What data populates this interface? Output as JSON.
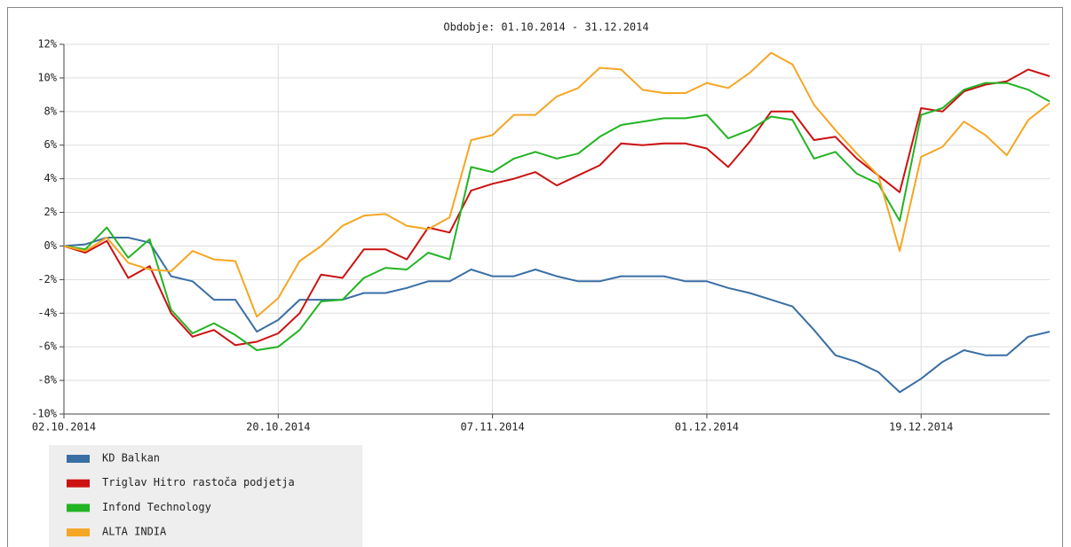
{
  "chart_data": {
    "type": "line",
    "title": "Obdobje: 01.10.2014 - 31.12.2014",
    "categories": [
      "02.10.2014",
      null,
      null,
      null,
      null,
      null,
      null,
      null,
      null,
      null,
      "20.10.2014",
      null,
      null,
      null,
      null,
      null,
      null,
      null,
      null,
      null,
      "07.11.2014",
      null,
      null,
      null,
      null,
      null,
      null,
      null,
      null,
      null,
      "01.12.2014",
      null,
      null,
      null,
      null,
      null,
      null,
      null,
      null,
      null,
      "19.12.2014",
      null,
      null,
      null,
      null,
      null,
      null
    ],
    "ylim": [
      -10,
      12
    ],
    "yticks": [
      {
        "value": -10,
        "label": "-10%"
      },
      {
        "value": -8,
        "label": "-8%"
      },
      {
        "value": -6,
        "label": "-6%"
      },
      {
        "value": -4,
        "label": "-4%"
      },
      {
        "value": -2,
        "label": "-2%"
      },
      {
        "value": 0,
        "label": "0%"
      },
      {
        "value": 2,
        "label": "2%"
      },
      {
        "value": 4,
        "label": "4%"
      },
      {
        "value": 6,
        "label": "6%"
      },
      {
        "value": 8,
        "label": "8%"
      },
      {
        "value": 10,
        "label": "10%"
      },
      {
        "value": 12,
        "label": "12%"
      }
    ],
    "grid": true,
    "legend": "bottom-left",
    "series": [
      {
        "name": "KD Balkan",
        "color": "#3a6ea5",
        "values": [
          0,
          0.1,
          0.5,
          0.5,
          0.2,
          -1.8,
          -2.1,
          -3.2,
          -3.2,
          -5.1,
          -4.4,
          -3.2,
          -3.2,
          -3.2,
          -2.8,
          -2.8,
          -2.5,
          -2.1,
          -2.1,
          -1.4,
          -1.8,
          -1.8,
          -1.4,
          -1.8,
          -2.1,
          -2.1,
          -1.8,
          -1.8,
          -1.8,
          -2.1,
          -2.1,
          -2.5,
          -2.8,
          -3.2,
          -3.6,
          -5.0,
          -6.5,
          -6.9,
          -7.5,
          -8.7,
          -7.9,
          -6.9,
          -6.2,
          -6.5,
          -6.5,
          -5.4,
          -5.1
        ]
      },
      {
        "name": "Triglav Hitro rastoča podjetja",
        "color": "#cc1111",
        "values": [
          0,
          -0.4,
          0.3,
          -1.9,
          -1.2,
          -4.0,
          -5.4,
          -5.0,
          -5.9,
          -5.7,
          -5.2,
          -4.0,
          -1.7,
          -1.9,
          -0.2,
          -0.2,
          -0.8,
          1.1,
          0.8,
          3.3,
          3.7,
          4.0,
          4.4,
          3.6,
          4.2,
          4.8,
          6.1,
          6.0,
          6.1,
          6.1,
          5.8,
          4.7,
          6.2,
          8.0,
          8.0,
          6.3,
          6.5,
          5.2,
          4.2,
          3.2,
          8.2,
          8.0,
          9.2,
          9.6,
          9.8,
          10.5,
          10.1
        ]
      },
      {
        "name": "Infond Technology",
        "color": "#22b422",
        "values": [
          0,
          -0.2,
          1.1,
          -0.7,
          0.4,
          -3.8,
          -5.2,
          -4.6,
          -5.3,
          -6.2,
          -6.0,
          -5.0,
          -3.3,
          -3.2,
          -1.9,
          -1.3,
          -1.4,
          -0.4,
          -0.8,
          4.7,
          4.4,
          5.2,
          5.6,
          5.2,
          5.5,
          6.5,
          7.2,
          7.4,
          7.6,
          7.6,
          7.8,
          6.4,
          6.9,
          7.7,
          7.5,
          5.2,
          5.6,
          4.3,
          3.7,
          1.5,
          7.8,
          8.2,
          9.3,
          9.7,
          9.7,
          9.3,
          8.6
        ]
      },
      {
        "name": "ALTA INDIA",
        "color": "#f5a623",
        "values": [
          0,
          -0.3,
          0.5,
          -1.0,
          -1.4,
          -1.5,
          -0.3,
          -0.8,
          -0.9,
          -4.2,
          -3.1,
          -0.9,
          0,
          1.2,
          1.8,
          1.9,
          1.2,
          1.0,
          1.7,
          6.3,
          6.6,
          7.8,
          7.8,
          8.9,
          9.4,
          10.6,
          10.5,
          9.3,
          9.1,
          9.1,
          9.7,
          9.4,
          10.3,
          11.5,
          10.8,
          8.4,
          6.9,
          5.5,
          4.2,
          -0.3,
          5.3,
          5.9,
          7.4,
          6.6,
          5.4,
          7.5,
          8.5
        ]
      }
    ]
  }
}
